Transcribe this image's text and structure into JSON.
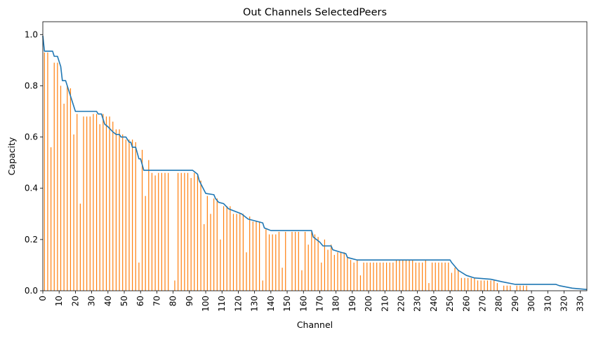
{
  "chart_data": {
    "type": "bar",
    "title": "Out Channels SelectedPeers",
    "xlabel": "Channel",
    "ylabel": "Capacity",
    "xlim": [
      0,
      334
    ],
    "ylim": [
      0,
      1.05
    ],
    "x_ticks": [
      "0",
      "10",
      "20",
      "30",
      "40",
      "50",
      "60",
      "70",
      "80",
      "90",
      "100",
      "110",
      "120",
      "130",
      "140",
      "150",
      "160",
      "170",
      "180",
      "190",
      "200",
      "210",
      "220",
      "230",
      "240",
      "250",
      "260",
      "270",
      "280",
      "290",
      "300",
      "310",
      "320",
      "330"
    ],
    "y_ticks": [
      "0.0",
      "0.2",
      "0.4",
      "0.6",
      "0.8",
      "1.0"
    ],
    "grid": false,
    "colors": {
      "bars": "#ff7f0e",
      "line": "#1f77b4"
    },
    "series": [
      {
        "kind": "bar",
        "description": "Per-channel capacity (every 2nd channel sampled)",
        "x": [
          1,
          3,
          5,
          7,
          9,
          11,
          13,
          15,
          17,
          19,
          21,
          23,
          25,
          27,
          29,
          31,
          33,
          35,
          37,
          39,
          41,
          43,
          45,
          47,
          49,
          51,
          53,
          55,
          57,
          59,
          61,
          63,
          65,
          67,
          69,
          71,
          73,
          75,
          77,
          79,
          81,
          83,
          85,
          87,
          89,
          91,
          93,
          95,
          97,
          99,
          101,
          103,
          105,
          107,
          109,
          111,
          113,
          115,
          117,
          119,
          121,
          123,
          125,
          127,
          129,
          131,
          133,
          135,
          137,
          139,
          141,
          143,
          145,
          147,
          149,
          151,
          153,
          155,
          157,
          159,
          161,
          163,
          165,
          167,
          169,
          171,
          173,
          175,
          177,
          179,
          181,
          183,
          185,
          187,
          189,
          191,
          193,
          195,
          197,
          199,
          201,
          203,
          205,
          207,
          209,
          211,
          213,
          215,
          217,
          219,
          221,
          223,
          225,
          227,
          229,
          231,
          233,
          235,
          237,
          239,
          241,
          243,
          245,
          247,
          249,
          251,
          253,
          255,
          257,
          259,
          261,
          263,
          265,
          267,
          269,
          271,
          273,
          275,
          277,
          279,
          281,
          283,
          285,
          287,
          289,
          291,
          293,
          295,
          297,
          299,
          301,
          303,
          305,
          307,
          309,
          311,
          313,
          315,
          317,
          319,
          321,
          323,
          325,
          327,
          329,
          331,
          333
        ],
        "values": [
          0.93,
          0.93,
          0.56,
          0.89,
          0.89,
          0.8,
          0.73,
          0.8,
          0.79,
          0.61,
          0.69,
          0.34,
          0.68,
          0.68,
          0.68,
          0.69,
          0.69,
          0.65,
          0.69,
          0.68,
          0.68,
          0.66,
          0.63,
          0.63,
          0.61,
          0.59,
          0.59,
          0.59,
          0.58,
          0.11,
          0.55,
          0.37,
          0.51,
          0.46,
          0.45,
          0.46,
          0.46,
          0.46,
          0.46,
          0.0,
          0.04,
          0.46,
          0.46,
          0.46,
          0.46,
          0.44,
          0.46,
          0.45,
          0.43,
          0.26,
          0.37,
          0.3,
          0.36,
          0.36,
          0.2,
          0.33,
          0.33,
          0.33,
          0.3,
          0.3,
          0.3,
          0.3,
          0.15,
          0.29,
          0.27,
          0.27,
          0.27,
          0.04,
          0.24,
          0.22,
          0.22,
          0.22,
          0.23,
          0.09,
          0.23,
          0.0,
          0.23,
          0.23,
          0.23,
          0.08,
          0.23,
          0.18,
          0.23,
          0.22,
          0.21,
          0.11,
          0.2,
          0.16,
          0.18,
          0.14,
          0.15,
          0.15,
          0.15,
          0.13,
          0.12,
          0.11,
          0.12,
          0.06,
          0.11,
          0.11,
          0.11,
          0.11,
          0.11,
          0.11,
          0.11,
          0.11,
          0.11,
          0.11,
          0.12,
          0.12,
          0.12,
          0.12,
          0.12,
          0.12,
          0.11,
          0.11,
          0.11,
          0.12,
          0.03,
          0.11,
          0.11,
          0.11,
          0.11,
          0.11,
          0.11,
          0.07,
          0.09,
          0.08,
          0.05,
          0.05,
          0.05,
          0.05,
          0.05,
          0.04,
          0.04,
          0.04,
          0.04,
          0.04,
          0.04,
          0.03,
          0.0,
          0.02,
          0.02,
          0.02,
          0.0,
          0.02,
          0.02,
          0.02,
          0.02,
          0.0,
          0.0,
          0.0,
          0.0,
          0.0,
          0.0,
          0.0,
          0.0,
          0.0,
          0.0,
          0.0,
          0.0,
          0.0,
          0.0,
          0.0,
          0.0,
          0.0,
          0.0
        ]
      },
      {
        "kind": "line",
        "description": "Cumulative max (sorted) capacity",
        "x": [
          0,
          1,
          6,
          7,
          9,
          10,
          11,
          12,
          14,
          15,
          17,
          18,
          20,
          22,
          25,
          31,
          33,
          34,
          36,
          37,
          38,
          40,
          43,
          45,
          47,
          48,
          51,
          53,
          54,
          55,
          57,
          59,
          60,
          62,
          64,
          70,
          92,
          95,
          96,
          100,
          105,
          106,
          108,
          111,
          114,
          118,
          122,
          126,
          135,
          136,
          140,
          165,
          166,
          170,
          172,
          177,
          178,
          183,
          186,
          187,
          190,
          193,
          200,
          225,
          250,
          251,
          253,
          255,
          260,
          265,
          275,
          282,
          290,
          315,
          317,
          325,
          334
        ],
        "values": [
          0.995,
          0.935,
          0.935,
          0.915,
          0.915,
          0.895,
          0.875,
          0.82,
          0.82,
          0.8,
          0.76,
          0.74,
          0.7,
          0.7,
          0.7,
          0.7,
          0.7,
          0.69,
          0.69,
          0.67,
          0.65,
          0.64,
          0.62,
          0.61,
          0.61,
          0.6,
          0.6,
          0.58,
          0.58,
          0.56,
          0.56,
          0.515,
          0.515,
          0.47,
          0.47,
          0.47,
          0.47,
          0.455,
          0.43,
          0.38,
          0.375,
          0.36,
          0.345,
          0.34,
          0.32,
          0.31,
          0.3,
          0.28,
          0.265,
          0.245,
          0.235,
          0.235,
          0.21,
          0.19,
          0.175,
          0.175,
          0.16,
          0.15,
          0.145,
          0.13,
          0.125,
          0.12,
          0.12,
          0.12,
          0.12,
          0.11,
          0.095,
          0.08,
          0.06,
          0.05,
          0.045,
          0.035,
          0.025,
          0.025,
          0.02,
          0.01,
          0.005
        ]
      }
    ]
  }
}
